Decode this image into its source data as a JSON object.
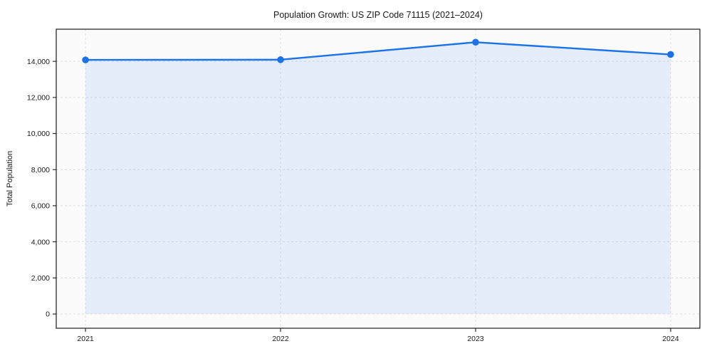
{
  "chart_data": {
    "type": "line",
    "title": "Population Growth: US ZIP Code 71115 (2021–2024)",
    "xlabel": "",
    "ylabel": "Total Population",
    "x": [
      2021,
      2022,
      2023,
      2024
    ],
    "x_tick_labels": [
      "2021",
      "2022",
      "2023",
      "2024"
    ],
    "series": [
      {
        "name": "Total Population",
        "values": [
          14080,
          14090,
          15060,
          14380
        ]
      }
    ],
    "y_ticks": [
      0,
      2000,
      4000,
      6000,
      8000,
      10000,
      12000,
      14000
    ],
    "y_tick_labels": [
      "0",
      "2,000",
      "4,000",
      "6,000",
      "8,000",
      "10,000",
      "12,000",
      "14,000"
    ],
    "xlim": [
      2020.85,
      2024.15
    ],
    "ylim": [
      -789,
      15781
    ],
    "grid": true,
    "grid_style": "dashed",
    "area_fill": true,
    "legend": "none",
    "marker": "circle",
    "colors": {
      "line": "#1a73e8",
      "marker": "#1a73e8",
      "area_fill": "rgba(26,115,232,0.10)",
      "grid": "#e0e0e0",
      "spine": "#1a1a1a",
      "tick": "#1a1a1a",
      "text": "#1a1a1a",
      "plot_background": "#fbfbfb",
      "figure_background": "#ffffff"
    }
  }
}
